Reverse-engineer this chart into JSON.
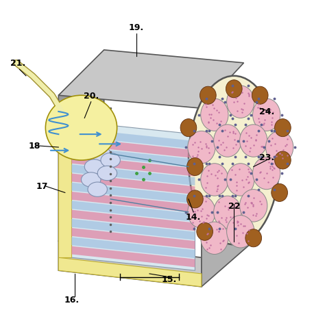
{
  "bg_color": "#ffffff",
  "title": "",
  "labels": {
    "14": [
      0.595,
      0.345,
      "14."
    ],
    "15": [
      0.52,
      0.155,
      "15."
    ],
    "16": [
      0.22,
      0.09,
      "16."
    ],
    "17": [
      0.13,
      0.44,
      "17"
    ],
    "18": [
      0.105,
      0.565,
      "18"
    ],
    "19": [
      0.42,
      0.93,
      "19."
    ],
    "20": [
      0.28,
      0.72,
      "20."
    ],
    "21": [
      0.055,
      0.82,
      "21."
    ],
    "22": [
      0.72,
      0.38,
      "22"
    ],
    "23": [
      0.82,
      0.53,
      "23."
    ],
    "24": [
      0.82,
      0.67,
      "24."
    ]
  },
  "colors": {
    "outer_shell": "#9a9a9a",
    "outer_shell_light": "#c8c8c8",
    "inner_bg": "#d8e8f0",
    "nerve_yellow": "#f5f0a0",
    "nerve_outline": "#c8b830",
    "pink_fiber": "#f0b8c8",
    "brown_mito": "#a06020",
    "blue_arrow": "#4090d0",
    "sarcomere_pink": "#e080a0",
    "sarcomere_blue": "#a0c0e0",
    "end_face_bg": "#f5f0d0",
    "connector_dots": "#606090",
    "green_dots": "#40a040",
    "label_color": "#000000"
  }
}
